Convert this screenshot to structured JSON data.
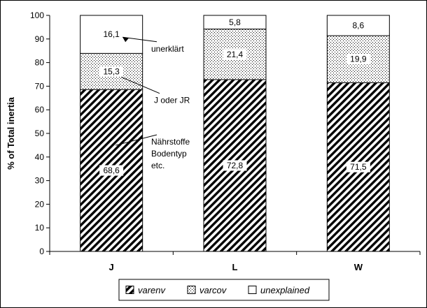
{
  "chart_data": {
    "type": "bar",
    "stacked": true,
    "categories": [
      "J",
      "L",
      "W"
    ],
    "ylabel": "% of Total inertia",
    "ylim": [
      0,
      100
    ],
    "yticks": [
      "0",
      "10",
      "20",
      "30",
      "40",
      "50",
      "60",
      "70",
      "80",
      "90",
      "100"
    ],
    "grid": false,
    "legend_position": "bottom",
    "series": [
      {
        "name": "varenv",
        "values": [
          68.6,
          72.8,
          71.5
        ],
        "labels": [
          "68,6",
          "72,8",
          "71,5"
        ],
        "fill": "diagonal-hatch"
      },
      {
        "name": "varcov",
        "values": [
          15.3,
          21.4,
          19.9
        ],
        "labels": [
          "15,3",
          "21,4",
          "19,9"
        ],
        "fill": "dots"
      },
      {
        "name": "unexplained",
        "values": [
          16.1,
          5.8,
          8.6
        ],
        "labels": [
          "16,1",
          "5,8",
          "8,6"
        ],
        "fill": "white"
      }
    ],
    "annotations": [
      {
        "text": "unerklärt",
        "category": "J",
        "series": "unexplained"
      },
      {
        "text": "J oder JR",
        "category": "J",
        "series": "varcov"
      },
      {
        "lines": [
          "Nährstoffe",
          "Bodentyp",
          "etc."
        ],
        "category": "J",
        "series": "varenv"
      }
    ]
  }
}
